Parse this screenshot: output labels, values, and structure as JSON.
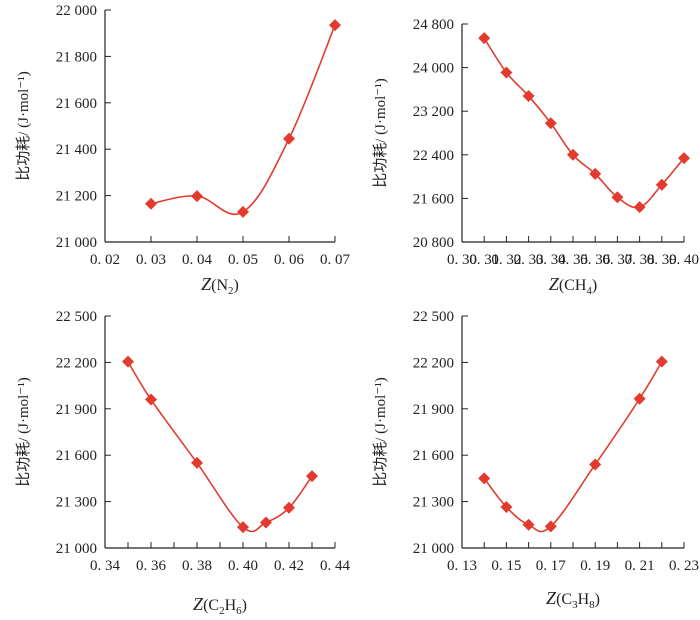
{
  "colors": {
    "series": "#e23b2e",
    "axis": "#222222"
  },
  "chart_data": [
    {
      "type": "line",
      "ylabel": "比功耗/ (J·mol⁻¹)",
      "xlabel": {
        "var": "Z",
        "open": "(",
        "parts": [
          [
            "N",
            ""
          ],
          [
            "2",
            "sub"
          ]
        ],
        "close": ")"
      },
      "xlim": [
        0.02,
        0.07
      ],
      "ylim": [
        21000,
        22000
      ],
      "xticks": [
        0.02,
        0.03,
        0.04,
        0.05,
        0.06,
        0.07
      ],
      "xtick_labels": [
        "0. 02",
        "0. 03",
        "0. 04",
        "0. 05",
        "0. 06",
        "0. 07"
      ],
      "yticks": [
        21000,
        21200,
        21400,
        21600,
        21800,
        22000
      ],
      "ytick_labels": [
        "21 000",
        "21 200",
        "21 400",
        "21 600",
        "21 800",
        "22 000"
      ],
      "x": [
        0.03,
        0.04,
        0.05,
        0.06,
        0.07
      ],
      "y": [
        21165,
        21198,
        21130,
        21445,
        21935
      ]
    },
    {
      "type": "line",
      "ylabel": "比功耗/ (J·mol⁻¹)",
      "xlabel": {
        "var": "Z",
        "open": "(",
        "parts": [
          [
            "CH",
            ""
          ],
          [
            "4",
            "sub"
          ]
        ],
        "close": ")"
      },
      "xlim": [
        0.3,
        0.4
      ],
      "ylim": [
        20800,
        24800
      ],
      "xticks": [
        0.3,
        0.31,
        0.32,
        0.33,
        0.34,
        0.35,
        0.36,
        0.37,
        0.38,
        0.39,
        0.4
      ],
      "xtick_labels": [
        "0. 30",
        "0. 31",
        "0. 32",
        "0. 33",
        "0. 34",
        "0. 35",
        "0. 36",
        "0. 37",
        "0. 38",
        "0. 39",
        "0. 40"
      ],
      "yticks": [
        20800,
        21600,
        22400,
        23200,
        24000,
        24800
      ],
      "ytick_labels": [
        "20 800",
        "21 600",
        "22 400",
        "23 200",
        "24 000",
        "24 800"
      ],
      "x": [
        0.31,
        0.32,
        0.33,
        0.34,
        0.35,
        0.36,
        0.37,
        0.38,
        0.39,
        0.4
      ],
      "y": [
        24540,
        23910,
        23480,
        22980,
        22400,
        22050,
        21620,
        21440,
        21850,
        22340
      ]
    },
    {
      "type": "line",
      "ylabel": "比功耗/ (J·mol⁻¹)",
      "xlabel": {
        "var": "Z",
        "open": "(",
        "parts": [
          [
            "C",
            ""
          ],
          [
            "2",
            "sub"
          ],
          [
            "H",
            ""
          ],
          [
            "6",
            "sub"
          ]
        ],
        "close": ")"
      },
      "xlim": [
        0.34,
        0.44
      ],
      "ylim": [
        21000,
        22500
      ],
      "xticks": [
        0.34,
        0.35,
        0.36,
        0.37,
        0.38,
        0.39,
        0.4,
        0.41,
        0.42,
        0.43,
        0.44
      ],
      "xtick_labels": [
        "0. 34",
        "0. 36",
        "0. 38",
        "0. 40",
        "0. 42",
        "0. 44"
      ],
      "xtick_label_values": [
        0.34,
        0.36,
        0.38,
        0.4,
        0.42,
        0.44
      ],
      "yticks": [
        21000,
        21300,
        21600,
        21900,
        22200,
        22500
      ],
      "ytick_labels": [
        "21 000",
        "21 300",
        "21 600",
        "21 900",
        "22 200",
        "22 500"
      ],
      "x": [
        0.35,
        0.36,
        0.38,
        0.4,
        0.41,
        0.42,
        0.43
      ],
      "y": [
        22205,
        21960,
        21550,
        21135,
        21165,
        21260,
        21465
      ]
    },
    {
      "type": "line",
      "ylabel": "比功耗/ (J·mol⁻¹)",
      "xlabel": {
        "var": "Z",
        "open": "(",
        "parts": [
          [
            "C",
            ""
          ],
          [
            "3",
            "sub"
          ],
          [
            "H",
            ""
          ],
          [
            "8",
            "sub"
          ]
        ],
        "close": ")"
      },
      "xlim": [
        0.13,
        0.23
      ],
      "ylim": [
        21000,
        22500
      ],
      "xticks": [
        0.13,
        0.14,
        0.15,
        0.16,
        0.17,
        0.18,
        0.19,
        0.2,
        0.21,
        0.22,
        0.23
      ],
      "xtick_labels": [
        "0. 13",
        "0. 15",
        "0. 17",
        "0. 19",
        "0. 21",
        "0. 23"
      ],
      "xtick_label_values": [
        0.13,
        0.15,
        0.17,
        0.19,
        0.21,
        0.23
      ],
      "yticks": [
        21000,
        21300,
        21600,
        21900,
        22200,
        22500
      ],
      "ytick_labels": [
        "21 000",
        "21 300",
        "21 600",
        "21 900",
        "22 200",
        "22 500"
      ],
      "x": [
        0.14,
        0.15,
        0.16,
        0.17,
        0.19,
        0.21,
        0.22
      ],
      "y": [
        21450,
        21265,
        21150,
        21140,
        21540,
        21965,
        22205
      ]
    }
  ]
}
